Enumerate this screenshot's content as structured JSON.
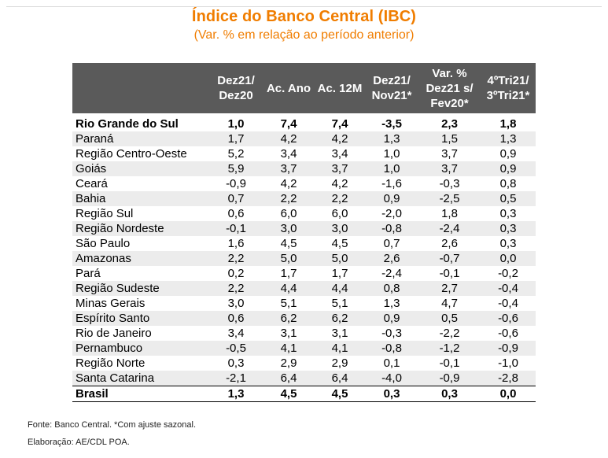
{
  "title": "Índice do Banco Central (IBC)",
  "subtitle": "(Var. % em relação ao período anterior)",
  "header": {
    "col0": "",
    "col1": [
      "Dez21/",
      "Dez20"
    ],
    "col2": "Ac. Ano",
    "col3": "Ac. 12M",
    "col4": [
      "Dez21/",
      "Nov21*"
    ],
    "col5": [
      "Var. %",
      "Dez21 s/",
      "Fev20*"
    ],
    "col6": [
      "4ºTri21/",
      "3ºTri21*"
    ]
  },
  "rows": [
    [
      "Rio Grande do Sul",
      "1,0",
      "7,4",
      "7,4",
      "-3,5",
      "2,3",
      "1,8"
    ],
    [
      "Paraná",
      "1,7",
      "4,2",
      "4,2",
      "1,3",
      "1,5",
      "1,3"
    ],
    [
      "Região Centro-Oeste",
      "5,2",
      "3,4",
      "3,4",
      "1,0",
      "3,7",
      "0,9"
    ],
    [
      "Goiás",
      "5,9",
      "3,7",
      "3,7",
      "1,0",
      "3,7",
      "0,9"
    ],
    [
      "Ceará",
      "-0,9",
      "4,2",
      "4,2",
      "-1,6",
      "-0,3",
      "0,8"
    ],
    [
      "Bahia",
      "0,7",
      "2,2",
      "2,2",
      "0,9",
      "-2,5",
      "0,5"
    ],
    [
      "Região Sul",
      "0,6",
      "6,0",
      "6,0",
      "-2,0",
      "1,8",
      "0,3"
    ],
    [
      "Região Nordeste",
      "-0,1",
      "3,0",
      "3,0",
      "-0,8",
      "-2,4",
      "0,3"
    ],
    [
      "São Paulo",
      "1,6",
      "4,5",
      "4,5",
      "0,7",
      "2,6",
      "0,3"
    ],
    [
      "Amazonas",
      "2,2",
      "5,0",
      "5,0",
      "2,6",
      "-0,7",
      "0,0"
    ],
    [
      "Pará",
      "0,2",
      "1,7",
      "1,7",
      "-2,4",
      "-0,1",
      "-0,2"
    ],
    [
      "Região Sudeste",
      "2,2",
      "4,4",
      "4,4",
      "0,8",
      "2,7",
      "-0,4"
    ],
    [
      "Minas Gerais",
      "3,0",
      "5,1",
      "5,1",
      "1,3",
      "4,7",
      "-0,4"
    ],
    [
      "Espírito Santo",
      "0,6",
      "6,2",
      "6,2",
      "0,9",
      "0,5",
      "-0,6"
    ],
    [
      "Rio de Janeiro",
      "3,4",
      "3,1",
      "3,1",
      "-0,3",
      "-2,2",
      "-0,6"
    ],
    [
      "Pernambuco",
      "-0,5",
      "4,1",
      "4,1",
      "-0,8",
      "-1,2",
      "-0,9"
    ],
    [
      "Região Norte",
      "0,3",
      "2,9",
      "2,9",
      "0,1",
      "-0,1",
      "-1,0"
    ],
    [
      "Santa Catarina",
      "-2,1",
      "6,4",
      "6,4",
      "-4,0",
      "-0,9",
      "-2,8"
    ],
    [
      "Brasil",
      "1,3",
      "4,5",
      "4,5",
      "0,3",
      "0,3",
      "0,0"
    ]
  ],
  "footer": {
    "source": "Fonte: Banco Central. *Com ajuste sazonal.",
    "credit": "Elaboração: AE/CDL POA."
  },
  "colors": {
    "accent": "#f07d00",
    "header_bg": "#5a5a5a",
    "stripe": "#ececec"
  }
}
